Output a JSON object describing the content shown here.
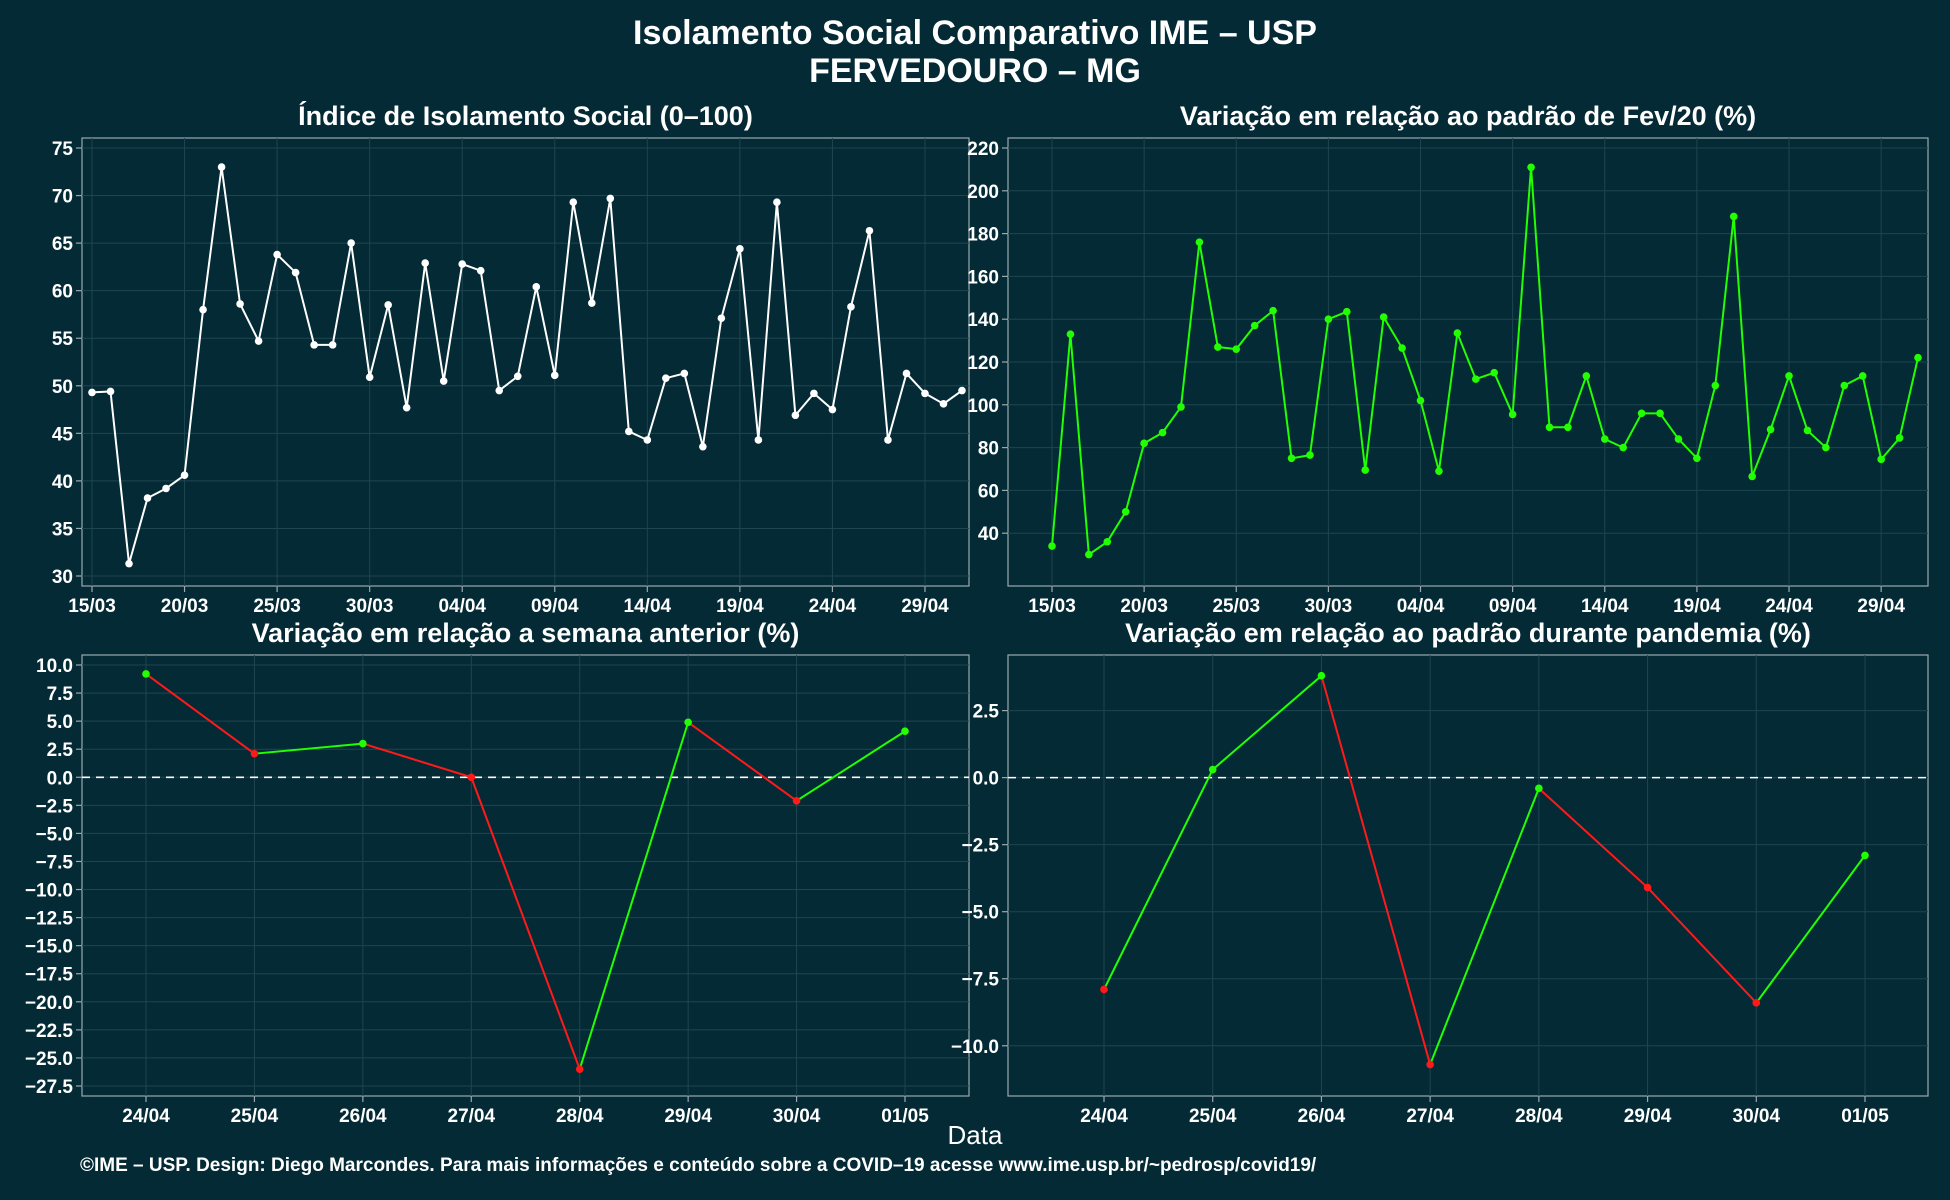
{
  "title": "Isolamento Social Comparativo IME – USP",
  "subtitle": "FERVEDOURO – MG",
  "xlabel": "Data",
  "footer": "©IME – USP. Design: Diego Marcondes. Para mais informações e conteúdo sobre a COVID–19 acesse www.ime.usp.br/~pedrosp/covid19/",
  "colors": {
    "background": "#042a35",
    "white_series": "#ffffff",
    "green_series": "#22ff00",
    "positive_segment": "#22ff00",
    "negative_segment": "#ff1a1a",
    "grid": "#1e4650",
    "axis": "#9aa9ad"
  },
  "chart_data": [
    {
      "type": "line",
      "title": "Índice de Isolamento Social (0–100)",
      "x_tick_labels": [
        "15/03",
        "20/03",
        "25/03",
        "30/03",
        "04/04",
        "09/04",
        "14/04",
        "19/04",
        "24/04",
        "29/04"
      ],
      "x_tick_index": [
        0,
        5,
        10,
        15,
        20,
        25,
        30,
        35,
        40,
        45
      ],
      "ylim": [
        30,
        75
      ],
      "y_ticks": [
        30,
        35,
        40,
        45,
        50,
        55,
        60,
        65,
        70,
        75
      ],
      "grid": true,
      "series": [
        {
          "color": "white",
          "values": [
            49.3,
            49.4,
            31.3,
            38.2,
            39.2,
            40.6,
            58,
            73,
            58.6,
            54.7,
            63.8,
            61.9,
            54.3,
            54.3,
            65,
            50.9,
            58.5,
            47.7,
            62.9,
            50.5,
            62.8,
            62.1,
            49.5,
            51,
            60.4,
            51.1,
            69.3,
            58.7,
            69.7,
            45.2,
            44.3,
            50.8,
            51.3,
            43.6,
            57.1,
            64.4,
            44.3,
            69.3,
            46.9,
            49.2,
            47.5,
            58.3,
            66.3,
            44.3,
            51.3,
            49.2,
            48.1,
            49.5
          ]
        }
      ]
    },
    {
      "type": "line",
      "title": "Variação em relação ao padrão de Fev/20 (%)",
      "x_tick_labels": [
        "15/03",
        "20/03",
        "25/03",
        "30/03",
        "04/04",
        "09/04",
        "14/04",
        "19/04",
        "24/04",
        "29/04"
      ],
      "x_tick_index": [
        0,
        5,
        10,
        15,
        20,
        25,
        30,
        35,
        40,
        45
      ],
      "ylim": [
        20,
        220
      ],
      "y_ticks": [
        40,
        60,
        80,
        100,
        120,
        140,
        160,
        180,
        200,
        220
      ],
      "grid": true,
      "series": [
        {
          "color": "green",
          "values": [
            34,
            133,
            30,
            36,
            50,
            82,
            87,
            99,
            176,
            127,
            126,
            137,
            144,
            75,
            76.5,
            140,
            143.5,
            69.5,
            141,
            126.5,
            102,
            69,
            133.5,
            112,
            115,
            95.5,
            211,
            89.5,
            89.5,
            113.5,
            84,
            80,
            96,
            96,
            84,
            75,
            109,
            188,
            66.5,
            88.5,
            113.5,
            88,
            80,
            109,
            113.5,
            74.5,
            84.5,
            122
          ]
        }
      ]
    },
    {
      "type": "line",
      "title": "Variação em relação a semana anterior (%)",
      "categories": [
        "24/04",
        "25/04",
        "26/04",
        "27/04",
        "28/04",
        "29/04",
        "30/04",
        "01/05"
      ],
      "ylim": [
        -27.5,
        10
      ],
      "y_tick_labels": [
        "10.0",
        "7.5",
        "5.0",
        "2.5",
        "0.0",
        "−2.5",
        "−5.0",
        "−7.5",
        "−10.0",
        "−12.5",
        "−15.0",
        "−17.5",
        "−20.0",
        "−22.5",
        "−25.0",
        "−27.5"
      ],
      "y_ticks": [
        10,
        7.5,
        5,
        2.5,
        0,
        -2.5,
        -5,
        -7.5,
        -10,
        -12.5,
        -15,
        -17.5,
        -20,
        -22.5,
        -25,
        -27.5
      ],
      "zero_line": "dashed",
      "grid": true,
      "series": [
        {
          "values": [
            9.2,
            2.1,
            3.0,
            0.0,
            -26.0,
            4.9,
            -2.1,
            4.1
          ]
        }
      ]
    },
    {
      "type": "line",
      "title": "Variação em relação ao padrão durante pandemia (%)",
      "categories": [
        "24/04",
        "25/04",
        "26/04",
        "27/04",
        "28/04",
        "29/04",
        "30/04",
        "01/05"
      ],
      "ylim": [
        -11.5,
        4.2
      ],
      "y_tick_labels": [
        "2.5",
        "0.0",
        "−2.5",
        "−5.0",
        "−7.5",
        "−10.0"
      ],
      "y_ticks": [
        2.5,
        0,
        -2.5,
        -5,
        -7.5,
        -10
      ],
      "zero_line": "dashed",
      "grid": true,
      "series": [
        {
          "values": [
            -7.9,
            0.3,
            3.8,
            -10.7,
            -0.4,
            -4.1,
            -8.4,
            -2.9
          ]
        }
      ]
    }
  ]
}
